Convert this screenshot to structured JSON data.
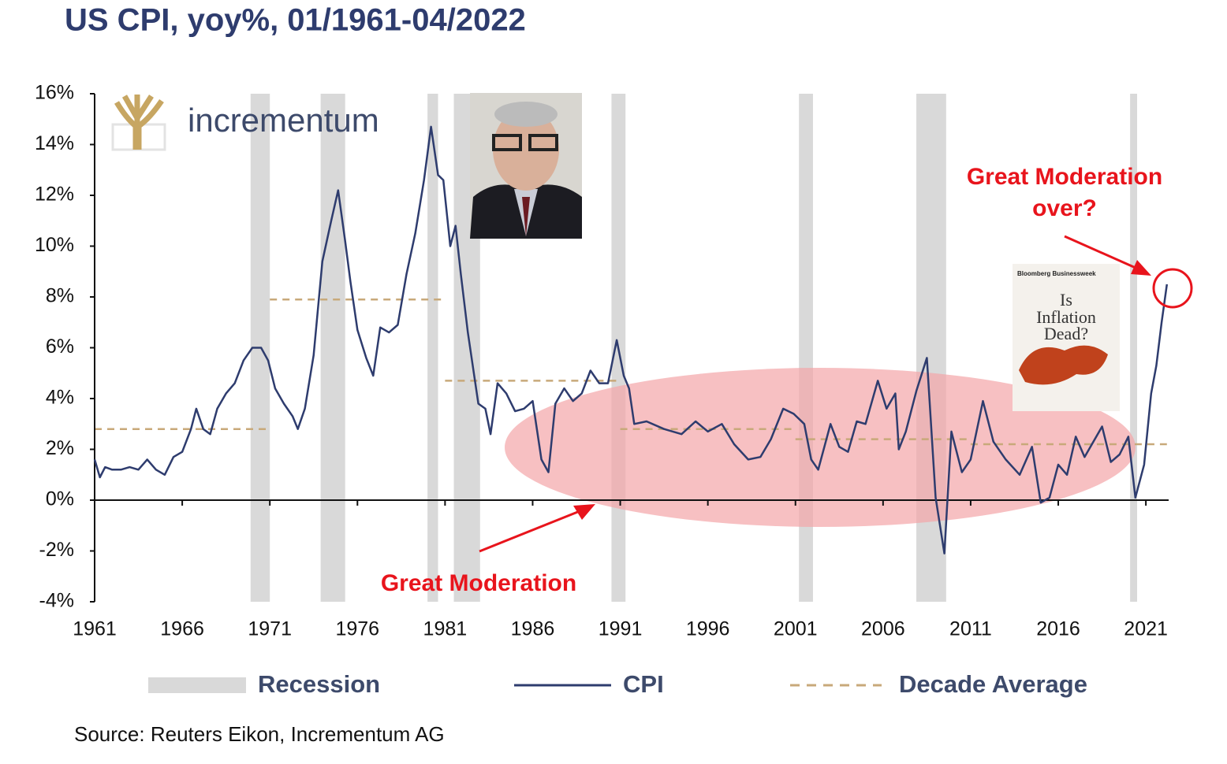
{
  "chart_data": {
    "type": "line",
    "title": "US CPI, yoy%, 01/1961-04/2022",
    "logo": "incrementum",
    "source": "Source: Reuters Eikon, Incrementum AG",
    "annotations": [
      "Great Moderation",
      "Great Moderation over?"
    ],
    "cover_text": [
      "Bloomberg Businessweek",
      "Is",
      "Inflation",
      "Dead?"
    ],
    "xlim": [
      1961,
      2022.3
    ],
    "xticks": [
      1961,
      1966,
      1971,
      1976,
      1981,
      1986,
      1991,
      1996,
      2001,
      2006,
      2011,
      2016,
      2021
    ],
    "ylim": [
      -4,
      16
    ],
    "yticks": [
      {
        "value": 16,
        "label": "16%"
      },
      {
        "value": 14,
        "label": "14%"
      },
      {
        "value": 12,
        "label": "12%"
      },
      {
        "value": 10,
        "label": "10%"
      },
      {
        "value": 8,
        "label": "8%"
      },
      {
        "value": 6,
        "label": "6%"
      },
      {
        "value": 4,
        "label": "4%"
      },
      {
        "value": 2,
        "label": "2%"
      },
      {
        "value": 0,
        "label": "0%"
      },
      {
        "value": -2,
        "label": "-2%"
      },
      {
        "value": -4,
        "label": "-4%"
      }
    ],
    "recession_name": "Recession",
    "recession_color": "#d9d9d9",
    "recessions": [
      [
        1969.9,
        1971.0
      ],
      [
        1973.9,
        1975.3
      ],
      [
        1980.0,
        1980.6
      ],
      [
        1981.5,
        1983.0
      ],
      [
        1990.5,
        1991.3
      ],
      [
        2001.2,
        2002.0
      ],
      [
        2007.9,
        2009.6
      ],
      [
        2020.1,
        2020.5
      ]
    ],
    "decade_name": "Decade Average",
    "decade_color": "#c8a97a",
    "decade_averages": [
      {
        "start": 1961,
        "end": 1970.8,
        "value": 2.8
      },
      {
        "start": 1971,
        "end": 1980.8,
        "value": 7.9
      },
      {
        "start": 1981,
        "end": 1990.9,
        "value": 4.7
      },
      {
        "start": 1991,
        "end": 2000.9,
        "value": 2.8
      },
      {
        "start": 2001,
        "end": 2010.9,
        "value": 2.4
      },
      {
        "start": 2011,
        "end": 2022.2,
        "value": 2.2
      }
    ],
    "x": [
      1961.0,
      1961.3,
      1961.6,
      1962.0,
      1962.5,
      1963.0,
      1963.5,
      1964.0,
      1964.5,
      1965.0,
      1965.5,
      1966.0,
      1966.5,
      1966.8,
      1967.2,
      1967.6,
      1968.0,
      1968.5,
      1969.0,
      1969.5,
      1970.0,
      1970.5,
      1970.9,
      1971.3,
      1971.8,
      1972.3,
      1972.6,
      1973.0,
      1973.5,
      1974.0,
      1974.5,
      1974.9,
      1975.3,
      1975.6,
      1976.0,
      1976.5,
      1976.9,
      1977.3,
      1977.8,
      1978.3,
      1978.8,
      1979.3,
      1979.8,
      1980.2,
      1980.6,
      1980.9,
      1981.3,
      1981.6,
      1981.9,
      1982.3,
      1982.9,
      1983.3,
      1983.6,
      1984.0,
      1984.5,
      1985.0,
      1985.5,
      1986.0,
      1986.5,
      1986.9,
      1987.3,
      1987.8,
      1988.3,
      1988.8,
      1989.3,
      1989.8,
      1990.3,
      1990.8,
      1991.2,
      1991.5,
      1991.8,
      1992.5,
      1993.5,
      1994.5,
      1995.3,
      1996.0,
      1996.8,
      1997.5,
      1998.3,
      1999.0,
      1999.6,
      2000.3,
      2000.9,
      2001.5,
      2001.9,
      2002.3,
      2003.0,
      2003.5,
      2004.0,
      2004.5,
      2005.0,
      2005.7,
      2006.2,
      2006.7,
      2006.9,
      2007.3,
      2007.9,
      2008.5,
      2009.0,
      2009.5,
      2009.9,
      2010.5,
      2011.0,
      2011.7,
      2012.3,
      2013.0,
      2013.8,
      2014.5,
      2015.0,
      2015.5,
      2016.0,
      2016.5,
      2017.0,
      2017.5,
      2018.5,
      2019.0,
      2019.5,
      2020.0,
      2020.4,
      2020.9,
      2021.3,
      2021.6,
      2021.9,
      2022.2
    ],
    "series": [
      {
        "name": "CPI",
        "color": "#2e3c6e",
        "values": [
          1.6,
          0.9,
          1.3,
          1.2,
          1.2,
          1.3,
          1.2,
          1.6,
          1.2,
          1.0,
          1.7,
          1.9,
          2.8,
          3.6,
          2.8,
          2.6,
          3.6,
          4.2,
          4.6,
          5.5,
          6.0,
          6.0,
          5.5,
          4.4,
          3.8,
          3.3,
          2.8,
          3.6,
          5.7,
          9.4,
          11.0,
          12.2,
          10.2,
          8.6,
          6.7,
          5.6,
          4.9,
          6.8,
          6.6,
          6.9,
          8.9,
          10.5,
          12.6,
          14.7,
          12.8,
          12.6,
          10.0,
          10.8,
          8.9,
          6.6,
          3.8,
          3.6,
          2.6,
          4.6,
          4.2,
          3.5,
          3.6,
          3.9,
          1.6,
          1.1,
          3.8,
          4.4,
          3.9,
          4.2,
          5.1,
          4.6,
          4.6,
          6.3,
          4.9,
          4.4,
          3.0,
          3.1,
          2.8,
          2.6,
          3.1,
          2.7,
          3.0,
          2.2,
          1.6,
          1.7,
          2.4,
          3.6,
          3.4,
          3.0,
          1.6,
          1.2,
          3.0,
          2.1,
          1.9,
          3.1,
          3.0,
          4.7,
          3.6,
          4.2,
          2.0,
          2.7,
          4.3,
          5.6,
          0.1,
          -2.1,
          2.7,
          1.1,
          1.6,
          3.9,
          2.3,
          1.6,
          1.0,
          2.1,
          -0.1,
          0.1,
          1.4,
          1.0,
          2.5,
          1.7,
          2.9,
          1.5,
          1.8,
          2.5,
          0.1,
          1.4,
          4.2,
          5.3,
          7.0,
          8.5
        ]
      }
    ]
  }
}
